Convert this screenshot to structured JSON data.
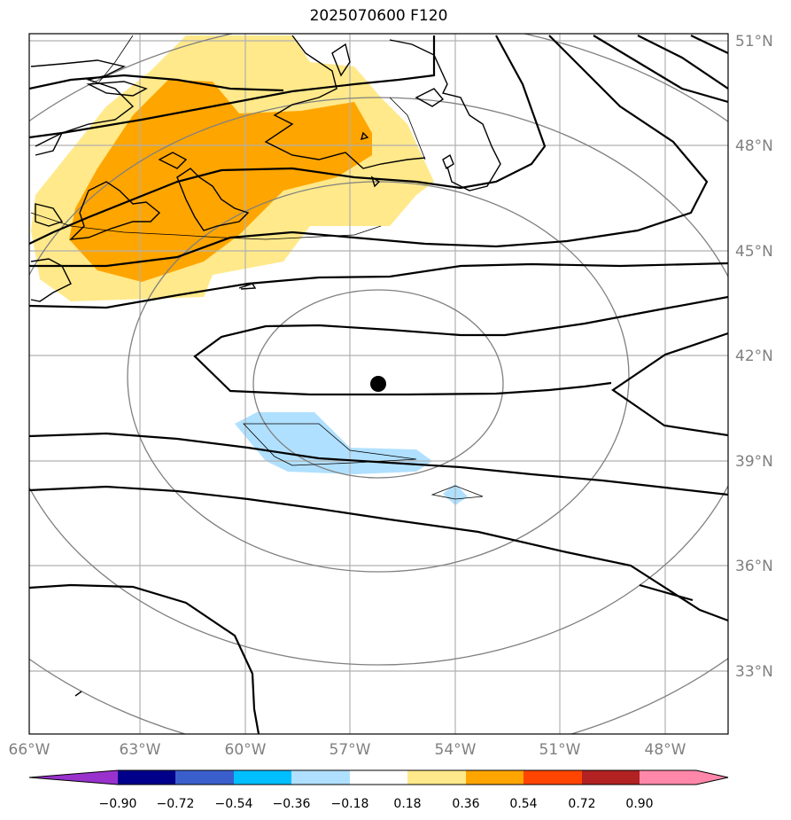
{
  "title": "2025070600 F120",
  "map": {
    "lon_labels": [
      "66°W",
      "63°W",
      "60°W",
      "57°W",
      "54°W",
      "51°W",
      "48°W"
    ],
    "lat_labels": [
      "51°N",
      "48°N",
      "45°N",
      "42°N",
      "39°N",
      "36°N",
      "33°N"
    ],
    "storm_center": {
      "lon": -56.2,
      "lat": 41.1
    },
    "colors": {
      "land_outline": "#000000",
      "contour": "#000000",
      "range_ring": "#808080",
      "grid": "#b0b0b0",
      "center_marker": "#000000"
    }
  },
  "colorbar": {
    "tick_labels": [
      "−0.90",
      "−0.72",
      "−0.54",
      "−0.36",
      "−0.18",
      "0.18",
      "0.36",
      "0.54",
      "0.72",
      "0.90"
    ],
    "colors": [
      "#9932cc",
      "#9932cc",
      "#00008b",
      "#3a5fcd",
      "#00bfff",
      "#b0e0ff",
      "#ffffff",
      "#ffe98a",
      "#ffa500",
      "#ff4500",
      "#b22222",
      "#ff88aa",
      "#ff88aa"
    ]
  }
}
